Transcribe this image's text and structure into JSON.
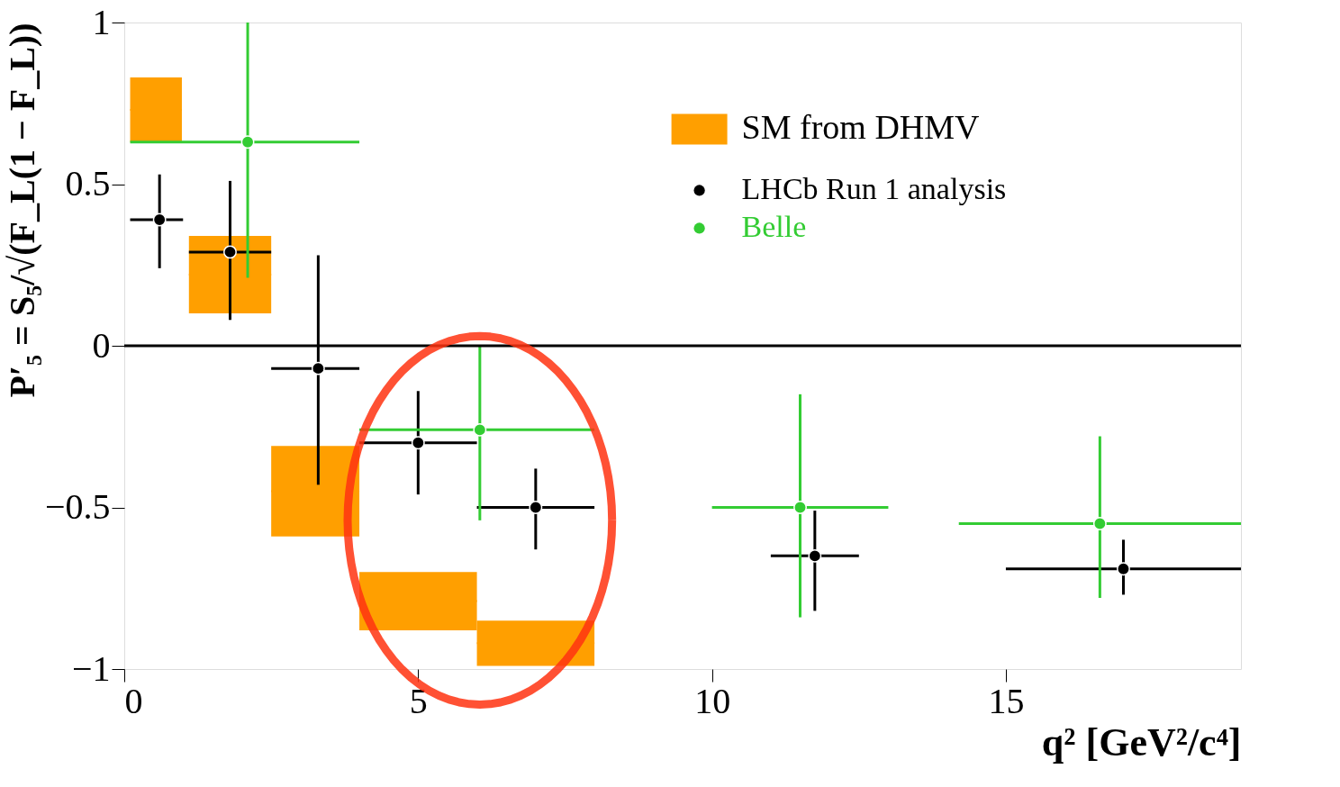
{
  "chart_data": {
    "type": "scatter",
    "xlabel": "q² [GeV²/c⁴]",
    "ylabel": "P′₅ = S₅/√(F_L(1 − F_L))",
    "xlim": [
      0,
      19
    ],
    "ylim": [
      -1,
      1
    ],
    "xticks": [
      0,
      5,
      10,
      15
    ],
    "yticks": [
      -1,
      -0.5,
      0,
      0.5,
      1
    ],
    "grid": false,
    "legend": "top right",
    "marker": "circle",
    "ref_lines": [
      {
        "axis": "y",
        "value": 0,
        "color": "#000000"
      }
    ],
    "series": [
      {
        "name": "SM from DHMV",
        "type": "bar",
        "color": "#ff9f00",
        "x": [
          0.54,
          1.8,
          3.25,
          5,
          7
        ],
        "base": [
          0.63,
          0.1,
          -0.59,
          -0.88,
          -0.99
        ],
        "values": [
          0.2,
          0.24,
          0.28,
          0.18,
          0.14
        ],
        "xerrors": [
          [
            0.1,
            0.98
          ],
          [
            1.1,
            2.5
          ],
          [
            2.5,
            4
          ],
          [
            4,
            6
          ],
          [
            6,
            8
          ]
        ]
      },
      {
        "name": "LHCb Run 1 analysis",
        "type": "scatter",
        "color": "#000000",
        "x": [
          0.6,
          1.8,
          3.3,
          5.0,
          7.0,
          11.75,
          17.0
        ],
        "values": [
          0.39,
          0.29,
          -0.07,
          -0.3,
          -0.5,
          -0.65,
          -0.69
        ],
        "errors": [
          [
            0.24,
            0.53
          ],
          [
            0.08,
            0.51
          ],
          [
            -0.43,
            0.28
          ],
          [
            -0.46,
            -0.14
          ],
          [
            -0.63,
            -0.38
          ],
          [
            -0.82,
            -0.51
          ],
          [
            -0.77,
            -0.6
          ]
        ],
        "xerrors": [
          [
            0.1,
            1.0
          ],
          [
            1.1,
            2.5
          ],
          [
            2.5,
            4
          ],
          [
            4,
            6
          ],
          [
            6,
            8
          ],
          [
            11,
            12.5
          ],
          [
            15,
            19
          ]
        ]
      },
      {
        "name": "Belle",
        "type": "scatter",
        "color": "#33cc33",
        "x": [
          2.1,
          6.05,
          11.5,
          16.6
        ],
        "values": [
          0.63,
          -0.26,
          -0.5,
          -0.55
        ],
        "errors": [
          [
            0.21,
            1.0
          ],
          [
            -0.54,
            0.0
          ],
          [
            -0.84,
            -0.15
          ],
          [
            -0.78,
            -0.28
          ]
        ],
        "xerrors": [
          [
            0.1,
            4
          ],
          [
            4,
            8
          ],
          [
            10,
            13
          ],
          [
            14.2,
            19
          ]
        ]
      }
    ]
  }
}
